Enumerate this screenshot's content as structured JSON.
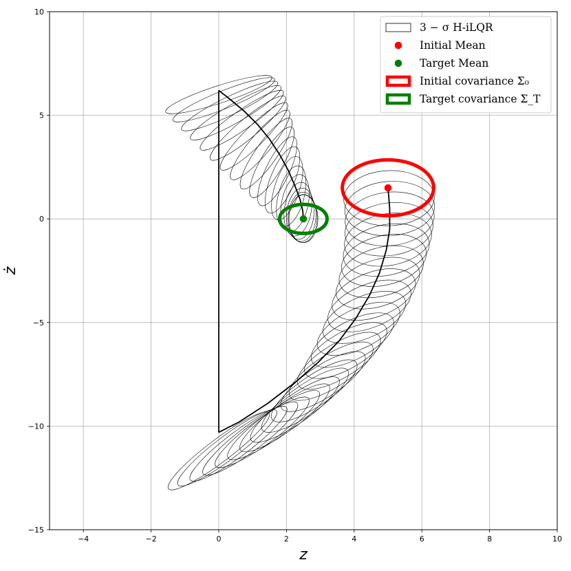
{
  "chart_data": {
    "type": "line",
    "xlabel": "z",
    "ylabel": "ż",
    "xlim": [
      -5,
      10
    ],
    "ylim": [
      -15,
      10
    ],
    "xticks": [
      -4,
      -2,
      0,
      2,
      4,
      6,
      8,
      10
    ],
    "yticks": [
      -15,
      -10,
      -5,
      0,
      5,
      10
    ],
    "xtick_labels": [
      "−4",
      "−2",
      "0",
      "2",
      "4",
      "6",
      "8",
      "10"
    ],
    "ytick_labels": [
      "−15",
      "−10",
      "−5",
      "0",
      "5",
      "10"
    ],
    "grid": true,
    "legend_position": "top-right",
    "legend": [
      {
        "label": "3 − σ H-iLQR",
        "kind": "patch-outline",
        "color": "#000000"
      },
      {
        "label": "Initial Mean",
        "kind": "marker",
        "color": "#ff0000"
      },
      {
        "label": "Target Mean",
        "kind": "marker",
        "color": "#008000"
      },
      {
        "label": "Initial covariance Σ₀",
        "kind": "patch-thick",
        "color": "#ff0000"
      },
      {
        "label": "Target covariance Σ_T",
        "kind": "patch-thick",
        "color": "#008000"
      }
    ],
    "initial_mean": [
      5.0,
      1.5
    ],
    "target_mean": [
      2.5,
      0.0
    ],
    "initial_covariance_3sigma_radii": [
      1.35,
      1.35
    ],
    "target_covariance_3sigma_radii": [
      0.7,
      0.7
    ],
    "series": [
      {
        "kind": "mean-trajectory",
        "x": [
          5.0,
          5.05,
          5.05,
          4.95,
          4.75,
          4.45,
          4.05,
          3.55,
          2.95,
          2.25,
          1.45,
          0.6,
          0.0
        ],
        "y": [
          1.5,
          0.5,
          -0.5,
          -1.5,
          -2.6,
          -3.7,
          -4.8,
          -5.9,
          -6.9,
          -7.9,
          -8.9,
          -9.8,
          -10.3
        ]
      },
      {
        "kind": "reset-jump",
        "x": [
          0.0,
          0.0
        ],
        "y": [
          -10.3,
          6.2
        ]
      },
      {
        "kind": "mean-trajectory",
        "x": [
          0.0,
          0.35,
          0.75,
          1.15,
          1.5,
          1.8,
          2.05,
          2.25,
          2.4,
          2.48,
          2.5
        ],
        "y": [
          6.2,
          5.75,
          5.2,
          4.55,
          3.85,
          3.1,
          2.35,
          1.6,
          0.95,
          0.4,
          0.0
        ]
      }
    ],
    "ellipse_tubes": [
      {
        "segment": "first",
        "centers_x": [
          5.0,
          5.03,
          5.05,
          5.05,
          5.03,
          5.0,
          4.95,
          4.88,
          4.8,
          4.7,
          4.58,
          4.45,
          4.3,
          4.13,
          3.95,
          3.75,
          3.55,
          3.32,
          3.08,
          2.82,
          2.55,
          2.25,
          1.95,
          1.62,
          1.28,
          0.93,
          0.58,
          0.25,
          0.0
        ],
        "centers_y": [
          1.5,
          1.0,
          0.5,
          0.0,
          -0.5,
          -1.0,
          -1.5,
          -2.0,
          -2.55,
          -3.1,
          -3.65,
          -4.2,
          -4.75,
          -5.3,
          -5.85,
          -6.35,
          -6.85,
          -7.35,
          -7.85,
          -8.3,
          -8.75,
          -9.2,
          -9.6,
          -9.95,
          -10.3,
          -10.6,
          -10.85,
          -11.05,
          -11.2
        ],
        "rx": [
          1.35,
          1.34,
          1.33,
          1.32,
          1.31,
          1.3,
          1.29,
          1.28,
          1.28,
          1.28,
          1.29,
          1.3,
          1.31,
          1.33,
          1.35,
          1.37,
          1.4,
          1.43,
          1.46,
          1.5,
          1.54,
          1.58,
          1.62,
          1.66,
          1.7,
          1.74,
          1.78,
          1.82,
          1.86
        ],
        "ry": [
          1.35,
          1.33,
          1.31,
          1.29,
          1.27,
          1.25,
          1.22,
          1.19,
          1.16,
          1.12,
          1.08,
          1.04,
          1.0,
          0.96,
          0.92,
          0.88,
          0.84,
          0.8,
          0.77,
          0.74,
          0.71,
          0.68,
          0.65,
          0.63,
          0.61,
          0.59,
          0.57,
          0.56,
          0.55
        ],
        "angle_deg": [
          0,
          -2,
          -4,
          -6,
          -8,
          -10,
          -12,
          -14,
          -16,
          -18,
          -20,
          -22,
          -24,
          -26,
          -28,
          -30,
          -31,
          -32,
          -33,
          -34,
          -35,
          -35,
          -36,
          -36,
          -36,
          -37,
          -37,
          -37,
          -37
        ]
      },
      {
        "segment": "second",
        "centers_x": [
          0.0,
          0.15,
          0.32,
          0.5,
          0.68,
          0.86,
          1.04,
          1.22,
          1.4,
          1.57,
          1.73,
          1.88,
          2.02,
          2.14,
          2.25,
          2.34,
          2.41,
          2.46,
          2.49,
          2.5
        ],
        "centers_y": [
          6.0,
          5.75,
          5.45,
          5.12,
          4.76,
          4.38,
          3.98,
          3.57,
          3.15,
          2.73,
          2.3,
          1.88,
          1.48,
          1.1,
          0.76,
          0.47,
          0.25,
          0.1,
          0.02,
          0.0
        ],
        "rx": [
          1.65,
          1.62,
          1.58,
          1.54,
          1.49,
          1.44,
          1.38,
          1.32,
          1.26,
          1.19,
          1.12,
          1.05,
          0.98,
          0.92,
          0.86,
          0.8,
          0.76,
          0.73,
          0.71,
          0.7
        ],
        "ry": [
          0.42,
          0.43,
          0.44,
          0.45,
          0.46,
          0.47,
          0.48,
          0.5,
          0.52,
          0.54,
          0.56,
          0.58,
          0.6,
          0.62,
          0.64,
          0.65,
          0.66,
          0.67,
          0.68,
          0.7
        ],
        "angle_deg": [
          -18,
          -22,
          -26,
          -30,
          -35,
          -40,
          -45,
          -50,
          -55,
          -60,
          -64,
          -68,
          -72,
          -75,
          -78,
          -81,
          -84,
          -86,
          -88,
          -90
        ]
      }
    ]
  }
}
